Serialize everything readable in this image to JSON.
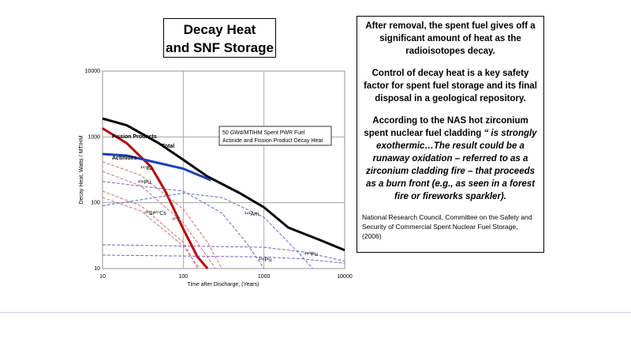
{
  "title": {
    "line1": "Decay Heat",
    "line2": "and SNF Storage"
  },
  "text": {
    "p1": "After removal, the spent fuel gives off a significant  amount of heat  as the radioisotopes decay.",
    "p2": "Control of decay heat is a key safety factor for spent fuel storage and its final disposal in a geological repository.",
    "p3a": "According to the NAS hot zirconium spent nuclear fuel cladding",
    "p3b": "“ is strongly exothermic…The result could be a runaway oxidation – referred to as a zirconium cladding fire – that proceeds as a burn front (e.g., as seen in a forest fire or fireworks sparkler).",
    "ref": "National Research Council, Committee on the Safety and Security of Commercial Spent Nuclear Fuel Storage, (2006)"
  },
  "chart_data": {
    "type": "line",
    "legend_text": [
      "50 GWd/MTIHM Spent PWR Fuel",
      "Actinide and Fission Product Decay Heat"
    ],
    "xlabel": "Time after Discharge, (Years)",
    "ylabel": "Decay Heat, Watts / MTIHM",
    "log_x": true,
    "log_y": true,
    "grid": true,
    "xlim": [
      10,
      10000
    ],
    "ylim": [
      10,
      10000
    ],
    "xticks": [
      10,
      100,
      1000,
      10000
    ],
    "yticks": [
      10,
      100,
      1000,
      10000
    ],
    "series": [
      {
        "name": "Total",
        "color": "#000000",
        "width": 3,
        "dashed": false,
        "x": [
          10,
          20,
          50,
          100,
          200,
          500,
          1000,
          2000,
          5000,
          10000
        ],
        "values": [
          1900,
          1500,
          800,
          450,
          250,
          140,
          85,
          42,
          27,
          19
        ]
      },
      {
        "name": "Fission Products",
        "color": "#c00000",
        "width": 3,
        "dashed": false,
        "x": [
          10,
          20,
          40,
          60,
          100,
          150,
          200
        ],
        "values": [
          1350,
          800,
          350,
          150,
          40,
          15,
          10
        ]
      },
      {
        "name": "Actinides",
        "color": "#1f3fbf",
        "width": 3,
        "dashed": false,
        "x": [
          10,
          20,
          50,
          100,
          220
        ],
        "values": [
          550,
          520,
          400,
          330,
          220
        ]
      },
      {
        "name": "¹³⁷Ba",
        "color": "#d07070",
        "width": 1,
        "dashed": true,
        "x": [
          10,
          30,
          100,
          200,
          300
        ],
        "values": [
          420,
          260,
          80,
          25,
          10
        ]
      },
      {
        "name": "²³⁸Pu",
        "color": "#8060c0",
        "width": 1,
        "dashed": true,
        "x": [
          10,
          100,
          300,
          600,
          1000
        ],
        "values": [
          210,
          150,
          70,
          25,
          10
        ]
      },
      {
        "name": "⁹⁰Sr",
        "color": "#d07070",
        "width": 1,
        "dashed": true,
        "x": [
          10,
          30,
          100,
          150
        ],
        "values": [
          150,
          90,
          25,
          10
        ]
      },
      {
        "name": "¹³⁷Cs",
        "color": "#d07070",
        "width": 1,
        "dashed": true,
        "x": [
          10,
          30,
          100,
          160
        ],
        "values": [
          120,
          75,
          22,
          10
        ]
      },
      {
        "name": "⁹⁰Y",
        "color": "#d07070",
        "width": 1,
        "dashed": true,
        "x": [
          10,
          30,
          100,
          200,
          250
        ],
        "values": [
          300,
          180,
          50,
          15,
          10
        ]
      },
      {
        "name": "²⁴¹Am",
        "color": "#5070d0",
        "width": 1,
        "dashed": true,
        "x": [
          10,
          100,
          300,
          1000,
          3000,
          4000
        ],
        "values": [
          90,
          140,
          120,
          60,
          15,
          10
        ]
      },
      {
        "name": "²³⁹Pu",
        "color": "#8060c0",
        "width": 1,
        "dashed": true,
        "x": [
          10,
          1000,
          3000,
          10000
        ],
        "values": [
          16,
          15,
          14,
          12
        ]
      },
      {
        "name": "²⁴⁰Pu",
        "color": "#8060c0",
        "width": 1,
        "dashed": true,
        "x": [
          10,
          1000,
          3000,
          10000
        ],
        "values": [
          23,
          21,
          18,
          13
        ]
      }
    ]
  }
}
